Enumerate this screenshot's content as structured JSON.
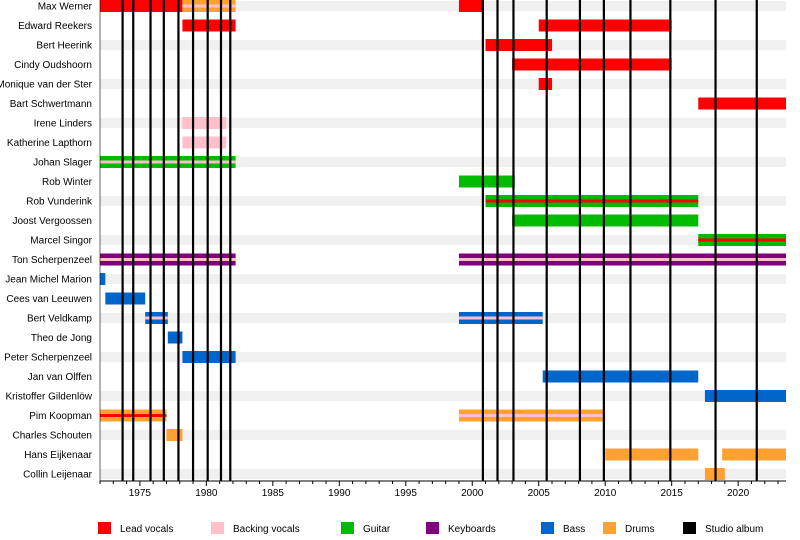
{
  "chart_data": {
    "type": "timeline",
    "xlim": [
      1972.0,
      2023.6
    ],
    "x_ticks": [
      1975,
      1980,
      1985,
      1990,
      1995,
      2000,
      2005,
      2010,
      2015,
      2020
    ],
    "tick_labels": [
      "1975",
      "1980",
      "1985",
      "1990",
      "1995",
      "2000",
      "2005",
      "2010",
      "2015",
      "2020"
    ],
    "legend": [
      {
        "key": "lead",
        "label": "Lead vocals",
        "color": "#ff0000"
      },
      {
        "key": "backing",
        "label": "Backing vocals",
        "color": "#ffc0cb"
      },
      {
        "key": "guitar",
        "label": "Guitar",
        "color": "#00bb00"
      },
      {
        "key": "keyboards",
        "label": "Keyboards",
        "color": "#800080"
      },
      {
        "key": "bass",
        "label": "Bass",
        "color": "#0066cc"
      },
      {
        "key": "drums",
        "label": "Drums",
        "color": "#ffa033"
      },
      {
        "key": "album",
        "label": "Studio album",
        "color": "#000000"
      }
    ],
    "legend_position": "bottom",
    "studio_albums": [
      1973.7,
      1974.5,
      1975.8,
      1976.8,
      1977.9,
      1979.0,
      1980.1,
      1981.1,
      1981.8,
      2000.8,
      2001.9,
      2003.1,
      2005.6,
      2008.1,
      2009.9,
      2011.9,
      2014.9,
      2018.3,
      2021.4
    ],
    "members": [
      {
        "name": "Max Werner",
        "periods": [
          {
            "start": 1972.0,
            "end": 1978.2,
            "main": "lead"
          },
          {
            "start": 1978.2,
            "end": 1982.2,
            "main": "drums",
            "sub": "backing"
          },
          {
            "start": 1999.0,
            "end": 2000.8,
            "main": "lead"
          }
        ]
      },
      {
        "name": "Edward Reekers",
        "periods": [
          {
            "start": 1978.2,
            "end": 1982.2,
            "main": "lead"
          },
          {
            "start": 2005.0,
            "end": 2015.0,
            "main": "lead"
          }
        ]
      },
      {
        "name": "Bert Heerink",
        "periods": [
          {
            "start": 2001.0,
            "end": 2006.0,
            "main": "lead"
          }
        ]
      },
      {
        "name": "Cindy Oudshoorn",
        "periods": [
          {
            "start": 2003.0,
            "end": 2015.0,
            "main": "lead"
          }
        ]
      },
      {
        "name": "Monique van der Ster",
        "periods": [
          {
            "start": 2005.0,
            "end": 2006.0,
            "main": "lead"
          }
        ]
      },
      {
        "name": "Bart Schwertmann",
        "periods": [
          {
            "start": 2017.0,
            "end": 2023.6,
            "main": "lead"
          }
        ]
      },
      {
        "name": "Irene Linders",
        "periods": [
          {
            "start": 1978.2,
            "end": 1981.5,
            "main": "backing"
          }
        ]
      },
      {
        "name": "Katherine Lapthorn",
        "periods": [
          {
            "start": 1978.2,
            "end": 1981.5,
            "main": "backing"
          }
        ]
      },
      {
        "name": "Johan Slager",
        "periods": [
          {
            "start": 1972.0,
            "end": 1982.2,
            "main": "guitar",
            "sub": "backing"
          }
        ]
      },
      {
        "name": "Rob Winter",
        "periods": [
          {
            "start": 1999.0,
            "end": 2003.2,
            "main": "guitar"
          }
        ]
      },
      {
        "name": "Rob Vunderink",
        "periods": [
          {
            "start": 2001.0,
            "end": 2017.0,
            "main": "guitar",
            "sub": "lead"
          }
        ]
      },
      {
        "name": "Joost Vergoossen",
        "periods": [
          {
            "start": 2003.0,
            "end": 2017.0,
            "main": "guitar"
          }
        ]
      },
      {
        "name": "Marcel Singor",
        "periods": [
          {
            "start": 2017.0,
            "end": 2023.6,
            "main": "guitar",
            "sub": "lead"
          }
        ]
      },
      {
        "name": "Ton Scherpenzeel",
        "periods": [
          {
            "start": 1972.0,
            "end": 1982.2,
            "main": "keyboards",
            "sub": "backing"
          },
          {
            "start": 1999.0,
            "end": 2023.6,
            "main": "keyboards",
            "sub": "backing"
          }
        ]
      },
      {
        "name": "Jean Michel Marion",
        "periods": [
          {
            "start": 1972.0,
            "end": 1972.4,
            "main": "bass"
          }
        ]
      },
      {
        "name": "Cees van Leeuwen",
        "periods": [
          {
            "start": 1972.4,
            "end": 1975.4,
            "main": "bass"
          }
        ]
      },
      {
        "name": "Bert Veldkamp",
        "periods": [
          {
            "start": 1975.4,
            "end": 1977.1,
            "main": "bass",
            "sub": "backing"
          },
          {
            "start": 1999.0,
            "end": 2005.3,
            "main": "bass",
            "sub": "backing"
          }
        ]
      },
      {
        "name": "Theo de Jong",
        "periods": [
          {
            "start": 1977.1,
            "end": 1978.2,
            "main": "bass"
          }
        ]
      },
      {
        "name": "Peter Scherpenzeel",
        "periods": [
          {
            "start": 1978.2,
            "end": 1982.2,
            "main": "bass"
          }
        ]
      },
      {
        "name": "Jan van Olffen",
        "periods": [
          {
            "start": 2005.3,
            "end": 2017.0,
            "main": "bass"
          }
        ]
      },
      {
        "name": "Kristoffer Gildenlöw",
        "periods": [
          {
            "start": 2017.5,
            "end": 2023.6,
            "main": "bass"
          }
        ]
      },
      {
        "name": "Pim Koopman",
        "periods": [
          {
            "start": 1972.0,
            "end": 1977.0,
            "main": "drums",
            "sub": "lead"
          },
          {
            "start": 1999.0,
            "end": 2010.0,
            "main": "drums",
            "sub": "backing"
          }
        ]
      },
      {
        "name": "Charles Schouten",
        "periods": [
          {
            "start": 1977.0,
            "end": 1978.2,
            "main": "drums"
          }
        ]
      },
      {
        "name": "Hans Eijkenaar",
        "periods": [
          {
            "start": 2010.0,
            "end": 2017.0,
            "main": "drums"
          },
          {
            "start": 2018.8,
            "end": 2023.6,
            "main": "drums"
          }
        ]
      },
      {
        "name": "Collin Leijenaar",
        "periods": [
          {
            "start": 2017.5,
            "end": 2019.0,
            "main": "drums"
          }
        ]
      }
    ]
  }
}
